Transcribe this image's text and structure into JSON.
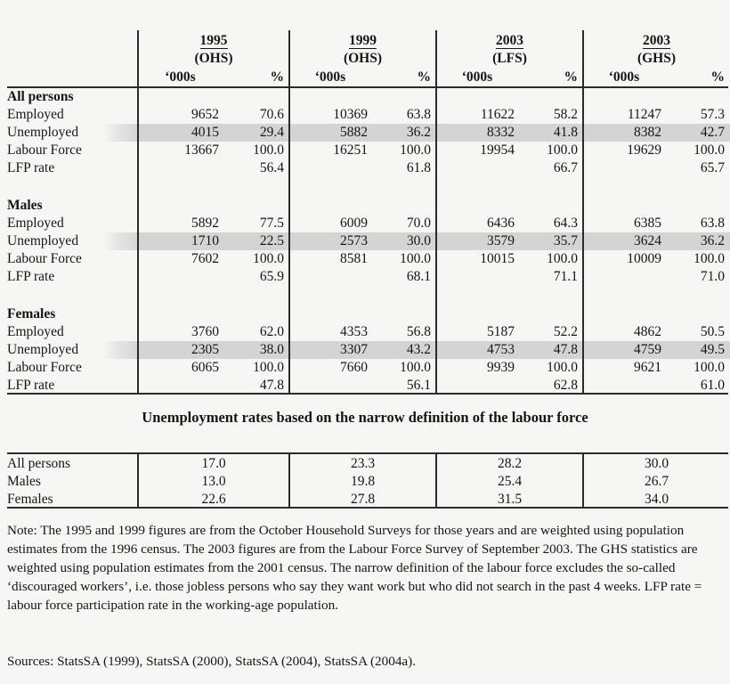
{
  "page": {
    "background_color": "#f6f6f5",
    "text_color": "#151515",
    "rule_color": "#2b2b2b",
    "highlight_color": "#d4d4d4"
  },
  "main_table": {
    "col_groups": [
      {
        "year": "1995",
        "survey": "(OHS)"
      },
      {
        "year": "1999",
        "survey": "(OHS)"
      },
      {
        "year": "2003",
        "survey": "(LFS)"
      },
      {
        "year": "2003",
        "survey": "(GHS)"
      }
    ],
    "units_label": "‘000s",
    "percent_label": "%",
    "sections": [
      {
        "name": "All persons",
        "rows": [
          {
            "label": "Employed",
            "highlight": false,
            "values": [
              "9652",
              "70.6",
              "10369",
              "63.8",
              "11622",
              "58.2",
              "11247",
              "57.3"
            ]
          },
          {
            "label": "Unemployed",
            "highlight": true,
            "values": [
              "4015",
              "29.4",
              "5882",
              "36.2",
              "8332",
              "41.8",
              "8382",
              "42.7"
            ]
          },
          {
            "label": "Labour Force",
            "highlight": false,
            "values": [
              "13667",
              "100.0",
              "16251",
              "100.0",
              "19954",
              "100.0",
              "19629",
              "100.0"
            ]
          },
          {
            "label": "LFP rate",
            "highlight": false,
            "values": [
              "",
              "56.4",
              "",
              "61.8",
              "",
              "66.7",
              "",
              "65.7"
            ]
          }
        ]
      },
      {
        "name": "Males",
        "rows": [
          {
            "label": "Employed",
            "highlight": false,
            "values": [
              "5892",
              "77.5",
              "6009",
              "70.0",
              "6436",
              "64.3",
              "6385",
              "63.8"
            ]
          },
          {
            "label": "Unemployed",
            "highlight": true,
            "values": [
              "1710",
              "22.5",
              "2573",
              "30.0",
              "3579",
              "35.7",
              "3624",
              "36.2"
            ]
          },
          {
            "label": "Labour Force",
            "highlight": false,
            "values": [
              "7602",
              "100.0",
              "8581",
              "100.0",
              "10015",
              "100.0",
              "10009",
              "100.0"
            ]
          },
          {
            "label": "LFP rate",
            "highlight": false,
            "values": [
              "",
              "65.9",
              "",
              "68.1",
              "",
              "71.1",
              "",
              "71.0"
            ]
          }
        ]
      },
      {
        "name": "Females",
        "rows": [
          {
            "label": "Employed",
            "highlight": false,
            "values": [
              "3760",
              "62.0",
              "4353",
              "56.8",
              "5187",
              "52.2",
              "4862",
              "50.5"
            ]
          },
          {
            "label": "Unemployed",
            "highlight": true,
            "values": [
              "2305",
              "38.0",
              "3307",
              "43.2",
              "4753",
              "47.8",
              "4759",
              "49.5"
            ]
          },
          {
            "label": "Labour Force",
            "highlight": false,
            "values": [
              "6065",
              "100.0",
              "7660",
              "100.0",
              "9939",
              "100.0",
              "9621",
              "100.0"
            ]
          },
          {
            "label": "LFP rate",
            "highlight": false,
            "values": [
              "",
              "47.8",
              "",
              "56.1",
              "",
              "62.8",
              "",
              "61.0"
            ]
          }
        ]
      }
    ]
  },
  "secondary_table": {
    "title": "Unemployment rates based on the narrow definition of the labour force",
    "rows": [
      {
        "label": "All persons",
        "values": [
          "17.0",
          "23.3",
          "28.2",
          "30.0"
        ]
      },
      {
        "label": "Males",
        "values": [
          "13.0",
          "19.8",
          "25.4",
          "26.7"
        ]
      },
      {
        "label": "Females",
        "values": [
          "22.6",
          "27.8",
          "31.5",
          "34.0"
        ]
      }
    ]
  },
  "note": "Note:  The 1995 and 1999 figures are from the October Household Surveys for those years and are weighted using population estimates from the 1996 census.  The 2003 figures are from the Labour Force Survey of September 2003. The GHS statistics are weighted using population estimates from the 2001 census.  The narrow definition of the labour force excludes the so-called ‘discouraged workers’, i.e. those jobless persons who say they want work but who did not search in the past 4 weeks.  LFP rate = labour force participation rate in the working-age population.",
  "sources": "Sources: StatsSA (1999), StatsSA (2000), StatsSA (2004), StatsSA (2004a)."
}
